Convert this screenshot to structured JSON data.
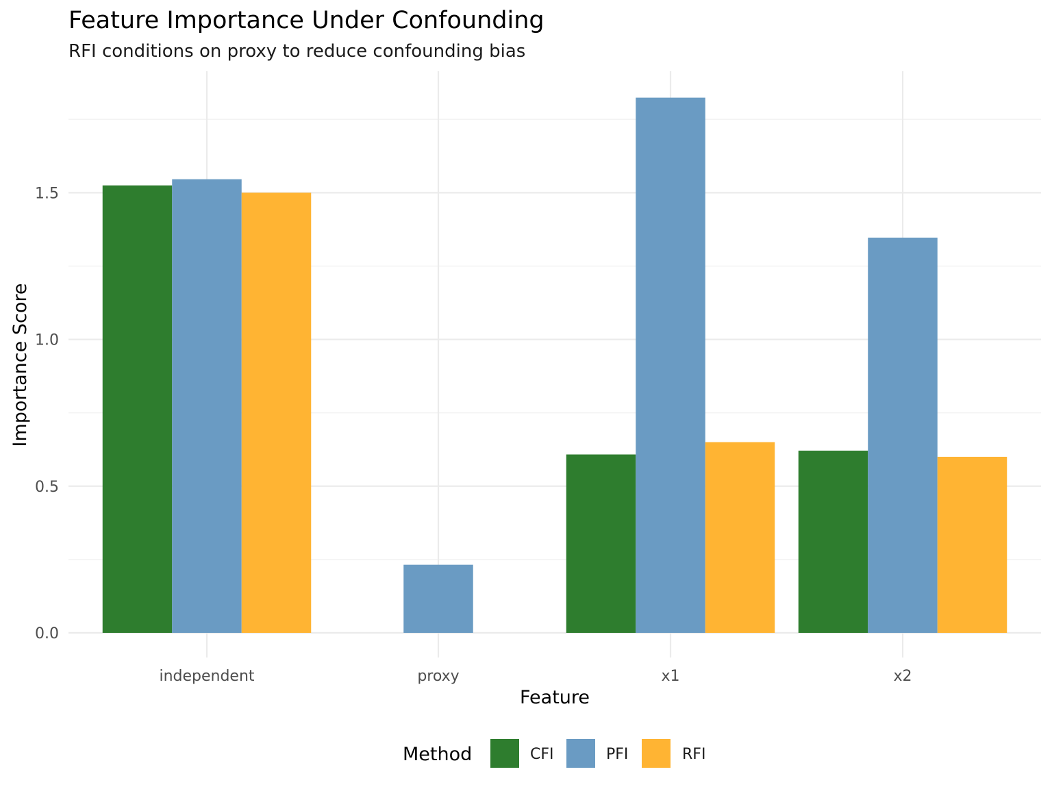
{
  "chart_data": {
    "type": "bar",
    "title": "Feature Importance Under Confounding",
    "subtitle": "RFI conditions on proxy to reduce confounding bias",
    "xlabel": "Feature",
    "ylabel": "Importance Score",
    "categories": [
      "independent",
      "proxy",
      "x1",
      "x2"
    ],
    "series": [
      {
        "name": "CFI",
        "color": "#2e7d2e",
        "values": [
          1.525,
          0,
          0.608,
          0.621
        ]
      },
      {
        "name": "PFI",
        "color": "#6a9bc3",
        "values": [
          1.546,
          0.232,
          1.824,
          1.347
        ]
      },
      {
        "name": "RFI",
        "color": "#ffb433",
        "values": [
          1.5,
          0,
          0.65,
          0.6
        ]
      }
    ],
    "ylim": [
      0,
      1.9
    ],
    "yticks": [
      0.0,
      0.5,
      1.0,
      1.5
    ],
    "ytick_labels": [
      "0.0",
      "0.5",
      "1.0",
      "1.5"
    ],
    "grid": true,
    "legend": {
      "title": "Method",
      "position": "bottom"
    }
  }
}
